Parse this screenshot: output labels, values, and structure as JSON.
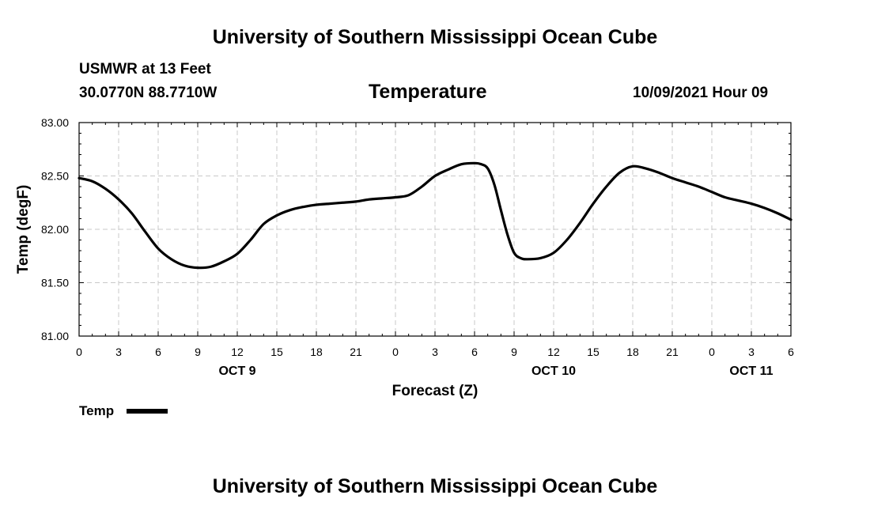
{
  "header": {
    "title_top": "University of Southern Mississippi Ocean Cube",
    "station": "USMWR at 13 Feet",
    "coords": "30.0770N  88.7710W",
    "chart_title": "Temperature",
    "datetime": "10/09/2021 Hour 09",
    "title_bottom": "University of Southern Mississippi Ocean Cube"
  },
  "legend": {
    "label": "Temp"
  },
  "chart_data": {
    "type": "line",
    "title": "Temperature",
    "xlabel": "Forecast (Z)",
    "ylabel": "Temp (degF)",
    "ylim": [
      81.0,
      83.0
    ],
    "yticks": [
      "81.00",
      "81.50",
      "82.00",
      "82.50",
      "83.00"
    ],
    "xlim": [
      0,
      54
    ],
    "xtick_positions": [
      0,
      3,
      6,
      9,
      12,
      15,
      18,
      21,
      24,
      27,
      30,
      33,
      36,
      39,
      42,
      45,
      48,
      51,
      54
    ],
    "xtick_labels": [
      "0",
      "3",
      "6",
      "9",
      "12",
      "15",
      "18",
      "21",
      "0",
      "3",
      "6",
      "9",
      "12",
      "15",
      "18",
      "21",
      "0",
      "3",
      "6"
    ],
    "day_labels": [
      {
        "hour": 12,
        "label": "OCT 9"
      },
      {
        "hour": 36,
        "label": "OCT 10"
      },
      {
        "hour": 51,
        "label": "OCT 11"
      }
    ],
    "grid": true,
    "series": [
      {
        "name": "Temp",
        "x": [
          0,
          1,
          2,
          3,
          4,
          5,
          6,
          7,
          8,
          9,
          10,
          11,
          12,
          13,
          14,
          15,
          16,
          17,
          18,
          19,
          20,
          21,
          22,
          23,
          24,
          25,
          26,
          27,
          28,
          29,
          30,
          30.5,
          31,
          31.5,
          32,
          32.5,
          33,
          33.5,
          34,
          35,
          36,
          37,
          38,
          39,
          40,
          41,
          42,
          43,
          44,
          45,
          46,
          47,
          48,
          49,
          50,
          51,
          52,
          53,
          54
        ],
        "values": [
          82.48,
          82.45,
          82.38,
          82.28,
          82.15,
          81.98,
          81.82,
          81.72,
          81.66,
          81.64,
          81.65,
          81.7,
          81.77,
          81.9,
          82.05,
          82.13,
          82.18,
          82.21,
          82.23,
          82.24,
          82.25,
          82.26,
          82.28,
          82.29,
          82.3,
          82.32,
          82.4,
          82.5,
          82.56,
          82.61,
          82.62,
          82.61,
          82.57,
          82.42,
          82.18,
          81.95,
          81.78,
          81.73,
          81.72,
          81.73,
          81.78,
          81.9,
          82.06,
          82.24,
          82.4,
          82.53,
          82.59,
          82.57,
          82.53,
          82.48,
          82.44,
          82.4,
          82.35,
          82.3,
          82.27,
          82.24,
          82.2,
          82.15,
          82.09
        ]
      }
    ]
  }
}
